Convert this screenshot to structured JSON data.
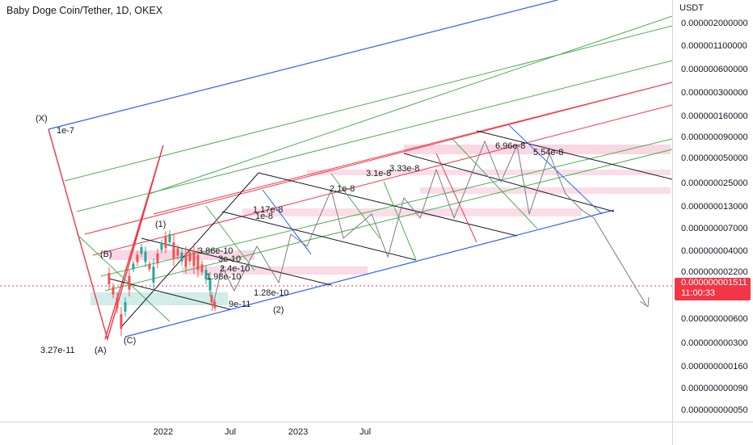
{
  "header": {
    "symbol": "Baby Doge Coin/Tether, 1D, OKEX"
  },
  "price_axis": {
    "unit": "USDT",
    "ticks": [
      "0.000002000000",
      "0.000001100000",
      "0.000000600000",
      "0.000000300000",
      "0.000000160000",
      "0.000000090000",
      "0.000000050000",
      "0.000000025000",
      "0.000000013000",
      "0.000000007000",
      "0.000000004000",
      "0.000000002200",
      "0.000000000600",
      "0.000000000300",
      "0.000000000160",
      "0.000000000090",
      "0.000000000050"
    ],
    "current_price": "0.000000001511",
    "countdown": "11:00:33"
  },
  "time_axis": {
    "labels": [
      "2022",
      "Jul",
      "2023",
      "Jul"
    ]
  },
  "annotations": {
    "X": "(X)",
    "A": "(A)",
    "B": "(B)",
    "C": "(C)",
    "w1": "(1)",
    "w2": "(2)",
    "p_x": "1e-7",
    "p_a": "3.27e-11",
    "p1": "3.86e-10",
    "p2": "3e-10",
    "p3": "2.4e-10",
    "p4": "1.98e-10",
    "p5": "1.28e-10",
    "p6": "9e-11",
    "p7": "1.17e-8",
    "p8": "1e-8",
    "p9": "2.1e-8",
    "p10": "3.1e-8",
    "p11": "3.33e-8",
    "p12": "6.96e-8",
    "p13": "5.54e-8"
  },
  "colors": {
    "current_price": "#f23645",
    "channel_blue": "#2962ff",
    "fib_green": "#4caf50",
    "fib_red": "#f23645",
    "zone_pink": "#f8bbd0",
    "zone_teal": "#b2dfdb",
    "candle_up": "#26a69a",
    "candle_down": "#ef5350",
    "path_gray": "#787b86"
  },
  "chart_data": {
    "type": "line",
    "title": "Baby Doge Coin/Tether, 1D, OKEX",
    "scale": "log",
    "x_labels": [
      "2022",
      "Jul",
      "2023",
      "Jul"
    ],
    "y_ticks": [
      2e-06,
      1.1e-06,
      6e-07,
      3e-07,
      1.6e-07,
      9e-08,
      5e-08,
      2.5e-08,
      1.3e-08,
      7e-09,
      4e-09,
      2.2e-09,
      6e-10,
      3e-10,
      1.6e-10,
      9e-11,
      5e-11
    ],
    "current_price": 1.511e-09,
    "price_labels": [
      "1e-7",
      "3.27e-11",
      "3.86e-10",
      "3e-10",
      "2.4e-10",
      "1.98e-10",
      "1.28e-10",
      "9e-11",
      "1.17e-8",
      "1e-8",
      "2.1e-8",
      "3.1e-8",
      "3.33e-8",
      "6.96e-8",
      "5.54e-8"
    ],
    "wave_labels": [
      "(X)",
      "(A)",
      "(B)",
      "(C)",
      "(1)",
      "(2)"
    ]
  }
}
